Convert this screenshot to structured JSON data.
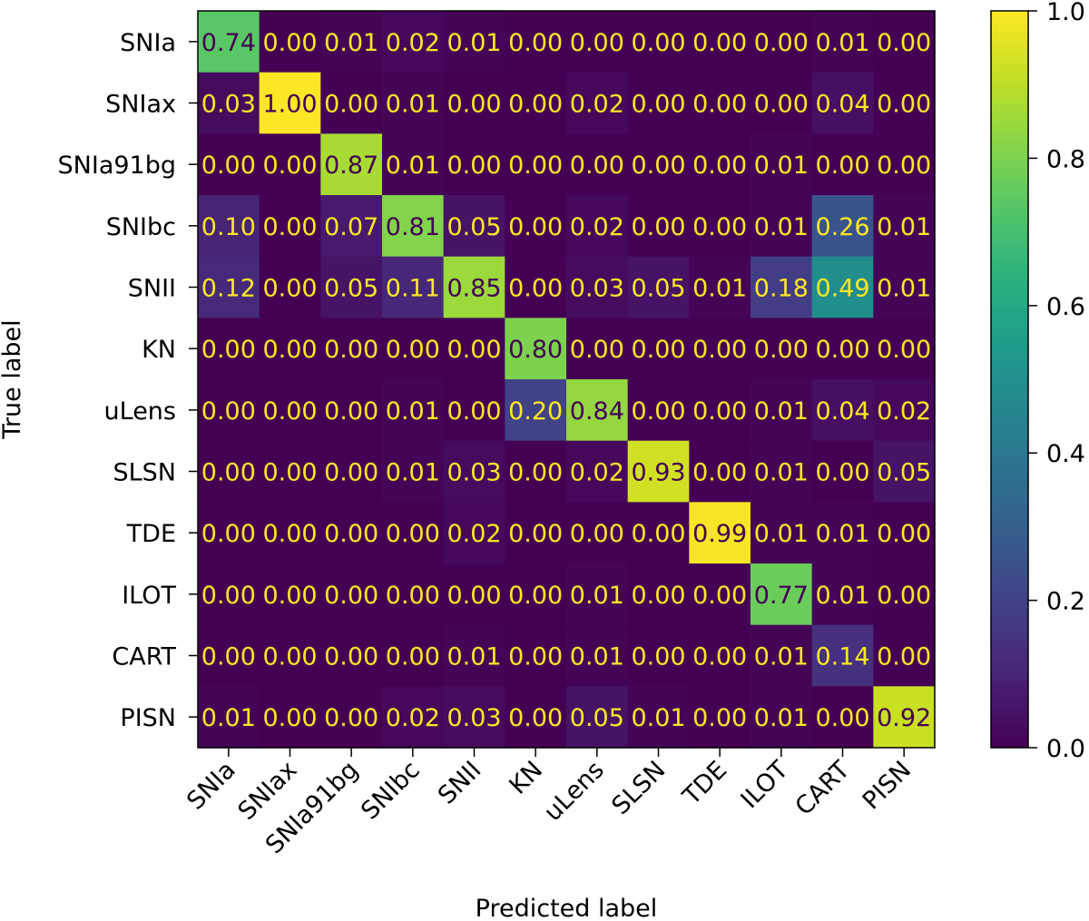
{
  "chart_data": {
    "type": "heatmap",
    "title": "",
    "xlabel": "Predicted label",
    "ylabel": "True label",
    "x_categories": [
      "SNIa",
      "SNIax",
      "SNIa91bg",
      "SNIbc",
      "SNII",
      "KN",
      "uLens",
      "SLSN",
      "TDE",
      "ILOT",
      "CART",
      "PISN"
    ],
    "y_categories": [
      "SNIa",
      "SNIax",
      "SNIa91bg",
      "SNIbc",
      "SNII",
      "KN",
      "uLens",
      "SLSN",
      "TDE",
      "ILOT",
      "CART",
      "PISN"
    ],
    "values": [
      [
        0.74,
        0.0,
        0.01,
        0.02,
        0.01,
        0.0,
        0.0,
        0.0,
        0.0,
        0.0,
        0.01,
        0.0
      ],
      [
        0.03,
        1.0,
        0.0,
        0.01,
        0.0,
        0.0,
        0.02,
        0.0,
        0.0,
        0.0,
        0.04,
        0.0
      ],
      [
        0.0,
        0.0,
        0.87,
        0.01,
        0.0,
        0.0,
        0.0,
        0.0,
        0.0,
        0.01,
        0.0,
        0.0
      ],
      [
        0.1,
        0.0,
        0.07,
        0.81,
        0.05,
        0.0,
        0.02,
        0.0,
        0.0,
        0.01,
        0.26,
        0.01
      ],
      [
        0.12,
        0.0,
        0.05,
        0.11,
        0.85,
        0.0,
        0.03,
        0.05,
        0.01,
        0.18,
        0.49,
        0.01
      ],
      [
        0.0,
        0.0,
        0.0,
        0.0,
        0.0,
        0.8,
        0.0,
        0.0,
        0.0,
        0.0,
        0.0,
        0.0
      ],
      [
        0.0,
        0.0,
        0.0,
        0.01,
        0.0,
        0.2,
        0.84,
        0.0,
        0.0,
        0.01,
        0.04,
        0.02
      ],
      [
        0.0,
        0.0,
        0.0,
        0.01,
        0.03,
        0.0,
        0.02,
        0.93,
        0.0,
        0.01,
        0.0,
        0.05
      ],
      [
        0.0,
        0.0,
        0.0,
        0.0,
        0.02,
        0.0,
        0.0,
        0.0,
        0.99,
        0.01,
        0.01,
        0.0
      ],
      [
        0.0,
        0.0,
        0.0,
        0.0,
        0.0,
        0.0,
        0.01,
        0.0,
        0.0,
        0.77,
        0.01,
        0.0
      ],
      [
        0.0,
        0.0,
        0.0,
        0.0,
        0.01,
        0.0,
        0.01,
        0.0,
        0.0,
        0.01,
        0.14,
        0.0
      ],
      [
        0.01,
        0.0,
        0.0,
        0.02,
        0.03,
        0.0,
        0.05,
        0.01,
        0.0,
        0.01,
        0.0,
        0.92
      ]
    ],
    "colormap": "viridis",
    "vmin": 0.0,
    "vmax": 1.0,
    "colorbar_ticks": [
      0.0,
      0.2,
      0.4,
      0.6,
      0.8,
      1.0
    ],
    "colorbar_tick_labels": [
      "0.0",
      "0.2",
      "0.4",
      "0.6",
      "0.8",
      "1.0"
    ],
    "annotation_color_light": "#fde725",
    "annotation_color_dark": "#440154",
    "grid": false,
    "legend": "colorbar-right"
  }
}
